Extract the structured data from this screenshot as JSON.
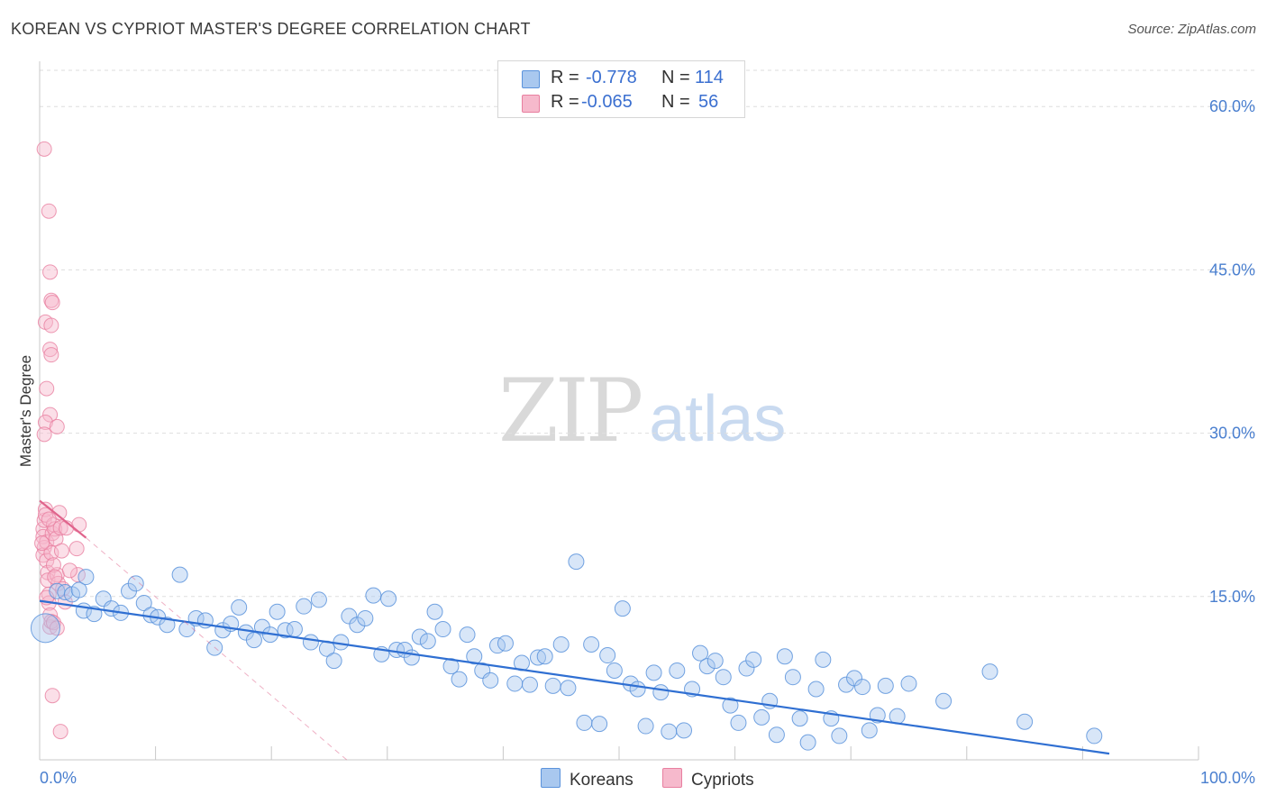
{
  "header": {
    "title": "KOREAN VS CYPRIOT MASTER'S DEGREE CORRELATION CHART",
    "source": "Source: ZipAtlas.com"
  },
  "watermark": {
    "zip": "ZIP",
    "atlas": "atlas"
  },
  "legend": {
    "rows": [
      {
        "r_label": "R =",
        "r_value": "-0.778",
        "n_label": "N =",
        "n_value": "114"
      },
      {
        "r_label": "R =",
        "r_value": "-0.065",
        "n_label": "N =",
        "n_value": "56"
      }
    ]
  },
  "bottom_legend": {
    "koreans": "Koreans",
    "cypriots": "Cypriots"
  },
  "colors": {
    "korean_fill": "#a9c8ef",
    "korean_stroke": "#5b93dc",
    "korean_line": "#2f6fd2",
    "cypriot_fill": "#f6b9cc",
    "cypriot_stroke": "#e87fa0",
    "cypriot_line": "#e0648c",
    "tick_text": "#4a7fcf",
    "grid": "#dedede"
  },
  "chart_data": {
    "type": "scatter",
    "title": "KOREAN VS CYPRIOT MASTER'S DEGREE CORRELATION CHART",
    "xlabel": "",
    "ylabel": "Master's Degree",
    "xlim": [
      0,
      100
    ],
    "ylim": [
      0,
      63
    ],
    "x_tick_labels": [
      "0.0%",
      "100.0%"
    ],
    "y_ticks": [
      15,
      30,
      45,
      60
    ],
    "y_tick_labels": [
      "15.0%",
      "30.0%",
      "45.0%",
      "60.0%"
    ],
    "grid": true,
    "series": [
      {
        "name": "Koreans",
        "r": -0.778,
        "n": 114,
        "trend": {
          "x": [
            0,
            100
          ],
          "y": [
            14.6,
            -0.6
          ]
        },
        "points": [
          [
            0.5,
            12.1
          ],
          [
            1.5,
            15.5
          ],
          [
            2.2,
            15.4
          ],
          [
            2.8,
            15.2
          ],
          [
            3.4,
            15.6
          ],
          [
            4.0,
            16.8
          ],
          [
            3.8,
            13.7
          ],
          [
            4.7,
            13.4
          ],
          [
            5.5,
            14.8
          ],
          [
            6.2,
            13.9
          ],
          [
            7.0,
            13.5
          ],
          [
            7.7,
            15.5
          ],
          [
            8.3,
            16.2
          ],
          [
            9.0,
            14.4
          ],
          [
            9.6,
            13.3
          ],
          [
            10.2,
            13.1
          ],
          [
            11.0,
            12.4
          ],
          [
            12.1,
            17.0
          ],
          [
            12.7,
            12.0
          ],
          [
            13.5,
            13.0
          ],
          [
            14.3,
            12.8
          ],
          [
            15.1,
            10.3
          ],
          [
            15.8,
            11.9
          ],
          [
            16.5,
            12.5
          ],
          [
            17.2,
            14.0
          ],
          [
            17.8,
            11.7
          ],
          [
            18.5,
            11.0
          ],
          [
            19.2,
            12.2
          ],
          [
            19.9,
            11.5
          ],
          [
            20.5,
            13.6
          ],
          [
            21.2,
            11.9
          ],
          [
            22.0,
            12.0
          ],
          [
            22.8,
            14.1
          ],
          [
            23.4,
            10.8
          ],
          [
            24.1,
            14.7
          ],
          [
            24.8,
            10.2
          ],
          [
            25.4,
            9.1
          ],
          [
            26.0,
            10.8
          ],
          [
            26.7,
            13.2
          ],
          [
            27.4,
            12.4
          ],
          [
            28.1,
            13.0
          ],
          [
            28.8,
            15.1
          ],
          [
            29.5,
            9.7
          ],
          [
            30.1,
            14.8
          ],
          [
            30.8,
            10.1
          ],
          [
            31.5,
            10.1
          ],
          [
            32.1,
            9.4
          ],
          [
            32.8,
            11.3
          ],
          [
            33.5,
            10.9
          ],
          [
            34.1,
            13.6
          ],
          [
            34.8,
            12.0
          ],
          [
            35.5,
            8.6
          ],
          [
            36.2,
            7.4
          ],
          [
            36.9,
            11.5
          ],
          [
            37.5,
            9.5
          ],
          [
            38.2,
            8.2
          ],
          [
            38.9,
            7.3
          ],
          [
            39.5,
            10.5
          ],
          [
            40.2,
            10.7
          ],
          [
            41.0,
            7.0
          ],
          [
            41.6,
            8.9
          ],
          [
            42.3,
            6.9
          ],
          [
            43.0,
            9.4
          ],
          [
            43.6,
            9.5
          ],
          [
            44.3,
            6.8
          ],
          [
            45.0,
            10.6
          ],
          [
            45.6,
            6.6
          ],
          [
            46.3,
            18.2
          ],
          [
            47.0,
            3.4
          ],
          [
            47.6,
            10.6
          ],
          [
            48.3,
            3.3
          ],
          [
            49.0,
            9.6
          ],
          [
            49.6,
            8.2
          ],
          [
            50.3,
            13.9
          ],
          [
            51.0,
            7.0
          ],
          [
            51.6,
            6.5
          ],
          [
            52.3,
            3.1
          ],
          [
            53.0,
            8.0
          ],
          [
            53.6,
            6.2
          ],
          [
            54.3,
            2.6
          ],
          [
            55.0,
            8.2
          ],
          [
            55.6,
            2.7
          ],
          [
            56.3,
            6.5
          ],
          [
            57.0,
            9.8
          ],
          [
            57.6,
            8.6
          ],
          [
            58.3,
            9.1
          ],
          [
            59.0,
            7.6
          ],
          [
            59.6,
            5.0
          ],
          [
            60.3,
            3.4
          ],
          [
            61.0,
            8.4
          ],
          [
            61.6,
            9.2
          ],
          [
            62.3,
            3.9
          ],
          [
            63.0,
            5.4
          ],
          [
            63.6,
            2.3
          ],
          [
            64.3,
            9.5
          ],
          [
            65.0,
            7.6
          ],
          [
            65.6,
            3.8
          ],
          [
            66.3,
            1.6
          ],
          [
            67.0,
            6.5
          ],
          [
            67.6,
            9.2
          ],
          [
            68.3,
            3.8
          ],
          [
            69.0,
            2.2
          ],
          [
            69.6,
            6.9
          ],
          [
            70.3,
            7.5
          ],
          [
            71.0,
            6.7
          ],
          [
            71.6,
            2.7
          ],
          [
            72.3,
            4.1
          ],
          [
            73.0,
            6.8
          ],
          [
            74.0,
            4.0
          ],
          [
            75.0,
            7.0
          ],
          [
            78.0,
            5.4
          ],
          [
            82.0,
            8.1
          ],
          [
            85.0,
            3.5
          ],
          [
            91.0,
            2.2
          ]
        ]
      },
      {
        "name": "Cypriots",
        "r": -0.065,
        "n": 56,
        "trend": {
          "x": [
            0,
            4
          ],
          "y": [
            23.8,
            20.4
          ]
        },
        "points": [
          [
            0.3,
            21.2
          ],
          [
            0.3,
            20.5
          ],
          [
            0.4,
            22.0
          ],
          [
            0.4,
            19.5
          ],
          [
            0.3,
            18.8
          ],
          [
            0.5,
            23.0
          ],
          [
            0.5,
            22.5
          ],
          [
            0.6,
            20.0
          ],
          [
            0.6,
            18.3
          ],
          [
            0.7,
            17.2
          ],
          [
            0.7,
            16.5
          ],
          [
            0.8,
            15.2
          ],
          [
            0.8,
            14.4
          ],
          [
            0.9,
            13.3
          ],
          [
            0.9,
            12.2
          ],
          [
            1.0,
            12.7
          ],
          [
            1.0,
            19.0
          ],
          [
            1.1,
            20.8
          ],
          [
            1.2,
            21.6
          ],
          [
            1.3,
            21.2
          ],
          [
            1.4,
            20.3
          ],
          [
            1.5,
            17.0
          ],
          [
            1.6,
            16.2
          ],
          [
            1.7,
            22.7
          ],
          [
            1.8,
            21.3
          ],
          [
            1.9,
            19.2
          ],
          [
            2.0,
            15.7
          ],
          [
            2.2,
            14.5
          ],
          [
            1.2,
            12.6
          ],
          [
            1.5,
            12.1
          ],
          [
            0.4,
            56.1
          ],
          [
            0.8,
            50.4
          ],
          [
            0.9,
            44.8
          ],
          [
            1.0,
            42.2
          ],
          [
            1.1,
            42.0
          ],
          [
            0.5,
            40.2
          ],
          [
            1.0,
            39.9
          ],
          [
            0.9,
            37.7
          ],
          [
            1.0,
            37.2
          ],
          [
            0.6,
            34.1
          ],
          [
            0.9,
            31.7
          ],
          [
            0.5,
            31.0
          ],
          [
            1.5,
            30.6
          ],
          [
            0.4,
            29.9
          ],
          [
            0.8,
            22.1
          ],
          [
            0.6,
            14.9
          ],
          [
            1.2,
            17.9
          ],
          [
            1.3,
            16.8
          ],
          [
            3.4,
            21.6
          ],
          [
            3.2,
            19.4
          ],
          [
            3.3,
            17.0
          ],
          [
            1.1,
            5.9
          ],
          [
            1.8,
            2.6
          ],
          [
            2.3,
            21.3
          ],
          [
            0.2,
            19.9
          ],
          [
            2.6,
            17.4
          ]
        ]
      }
    ]
  }
}
